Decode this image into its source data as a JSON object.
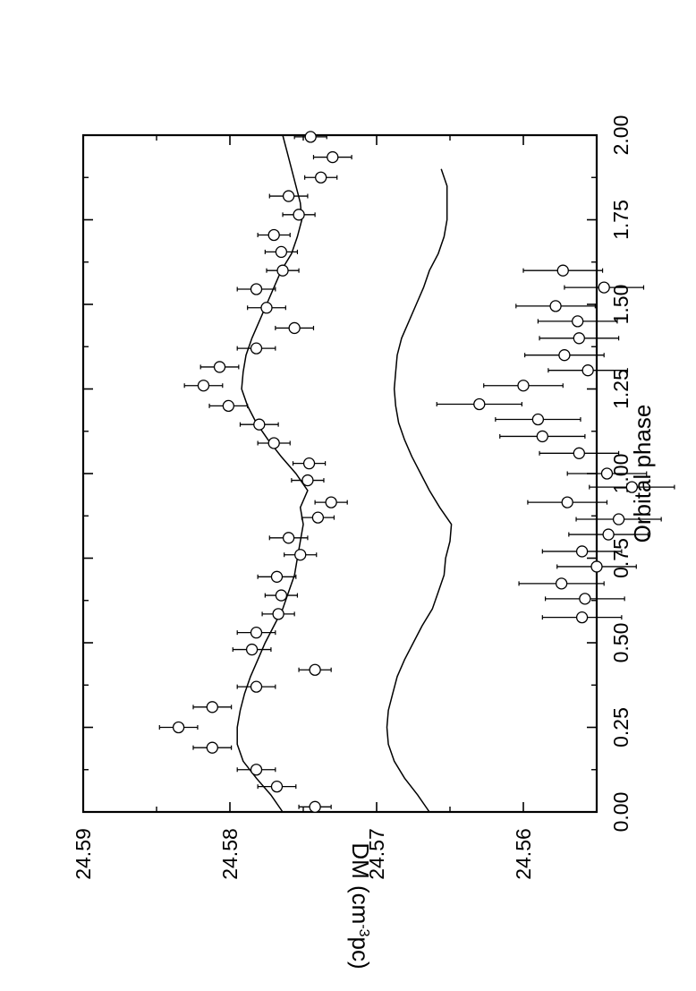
{
  "chart_data": {
    "type": "scatter",
    "orientation": "rotated 90 degrees counter-clockwise",
    "xlabel": "Orbital phase",
    "ylabel_main": "DM (cm",
    "ylabel_sup": "-3",
    "ylabel_tail": "pc)",
    "xlim": [
      0.0,
      2.0
    ],
    "ylim": [
      24.555,
      24.59
    ],
    "x_ticks": [
      "0.00",
      "0.25",
      "0.50",
      "0.75",
      "1.00",
      "1.25",
      "1.50",
      "1.75",
      "2.00"
    ],
    "x_tick_values": [
      0,
      0.25,
      0.5,
      0.75,
      1.0,
      1.25,
      1.5,
      1.75,
      2.0
    ],
    "y_ticks": [
      "24.59",
      "24.58",
      "24.57",
      "24.56"
    ],
    "y_tick_values": [
      24.59,
      24.58,
      24.57,
      24.56
    ],
    "grid": false,
    "series": [
      {
        "points": [
          {
            "x": 0.015,
            "y": 24.5742,
            "err": 0.0011
          },
          {
            "x": 0.075,
            "y": 24.5768,
            "err": 0.0013
          },
          {
            "x": 0.125,
            "y": 24.5782,
            "err": 0.0013
          },
          {
            "x": 0.19,
            "y": 24.5812,
            "err": 0.0013
          },
          {
            "x": 0.25,
            "y": 24.5835,
            "err": 0.0013
          },
          {
            "x": 0.31,
            "y": 24.5812,
            "err": 0.0013
          },
          {
            "x": 0.37,
            "y": 24.5782,
            "err": 0.0013
          },
          {
            "x": 0.42,
            "y": 24.5742,
            "err": 0.0011
          },
          {
            "x": 0.48,
            "y": 24.5785,
            "err": 0.0013
          },
          {
            "x": 0.53,
            "y": 24.5782,
            "err": 0.0013
          },
          {
            "x": 0.585,
            "y": 24.5767,
            "err": 0.0011
          },
          {
            "x": 0.64,
            "y": 24.5765,
            "err": 0.0011
          },
          {
            "x": 0.695,
            "y": 24.5768,
            "err": 0.0013
          },
          {
            "x": 0.76,
            "y": 24.5752,
            "err": 0.0011
          },
          {
            "x": 0.81,
            "y": 24.576,
            "err": 0.0013
          },
          {
            "x": 0.87,
            "y": 24.574,
            "err": 0.0011
          },
          {
            "x": 0.915,
            "y": 24.5731,
            "err": 0.0011
          },
          {
            "x": 0.98,
            "y": 24.5747,
            "err": 0.0011
          },
          {
            "x": 1.03,
            "y": 24.5746,
            "err": 0.0011
          },
          {
            "x": 1.09,
            "y": 24.577,
            "err": 0.0011
          },
          {
            "x": 1.145,
            "y": 24.578,
            "err": 0.0013
          },
          {
            "x": 1.2,
            "y": 24.5801,
            "err": 0.0013
          },
          {
            "x": 1.26,
            "y": 24.5818,
            "err": 0.0013
          },
          {
            "x": 1.315,
            "y": 24.5807,
            "err": 0.0013
          },
          {
            "x": 1.37,
            "y": 24.5782,
            "err": 0.0013
          },
          {
            "x": 1.43,
            "y": 24.5756,
            "err": 0.0013
          },
          {
            "x": 1.49,
            "y": 24.5775,
            "err": 0.0013
          },
          {
            "x": 1.545,
            "y": 24.5782,
            "err": 0.0013
          },
          {
            "x": 1.6,
            "y": 24.5764,
            "err": 0.0011
          },
          {
            "x": 1.655,
            "y": 24.5765,
            "err": 0.0011
          },
          {
            "x": 1.705,
            "y": 24.577,
            "err": 0.0011
          },
          {
            "x": 1.765,
            "y": 24.5753,
            "err": 0.0011
          },
          {
            "x": 1.82,
            "y": 24.576,
            "err": 0.0013
          },
          {
            "x": 1.875,
            "y": 24.5738,
            "err": 0.0011
          },
          {
            "x": 1.935,
            "y": 24.573,
            "err": 0.0013
          },
          {
            "x": 1.995,
            "y": 24.5745,
            "err": 0.0011
          }
        ],
        "model": {
          "x": [
            0.0,
            0.05,
            0.1,
            0.15,
            0.2,
            0.25,
            0.3,
            0.35,
            0.4,
            0.45,
            0.5,
            0.55,
            0.6,
            0.65,
            0.7,
            0.75,
            0.8,
            0.85,
            0.9,
            0.95,
            1.0,
            1.05,
            1.1,
            1.15,
            1.2,
            1.25,
            1.3,
            1.35,
            1.4,
            1.45,
            1.5,
            1.55,
            1.6,
            1.65,
            1.7,
            1.75,
            1.8,
            1.85,
            1.9,
            1.95,
            2.0
          ],
          "y": [
            24.5764,
            24.5772,
            24.5782,
            24.5791,
            24.5795,
            24.5795,
            24.5793,
            24.579,
            24.5786,
            24.5781,
            24.5776,
            24.577,
            24.5764,
            24.576,
            24.5756,
            24.5754,
            24.5752,
            24.575,
            24.5752,
            24.5747,
            24.5755,
            24.5765,
            24.5774,
            24.5782,
            24.5788,
            24.5792,
            24.5791,
            24.5789,
            24.5785,
            24.578,
            24.5775,
            24.577,
            24.5765,
            24.5758,
            24.5754,
            24.5751,
            24.5752,
            24.5755,
            24.5758,
            24.5761,
            24.5764
          ]
        }
      },
      {
        "points": [
          {
            "x": 0.575,
            "y": 24.556,
            "err": 0.0027
          },
          {
            "x": 0.63,
            "y": 24.5558,
            "err": 0.0027
          },
          {
            "x": 0.675,
            "y": 24.5574,
            "err": 0.0029
          },
          {
            "x": 0.725,
            "y": 24.555,
            "err": 0.0027
          },
          {
            "x": 0.77,
            "y": 24.556,
            "err": 0.0027
          },
          {
            "x": 0.82,
            "y": 24.5542,
            "err": 0.0027
          },
          {
            "x": 0.865,
            "y": 24.5535,
            "err": 0.0029
          },
          {
            "x": 0.915,
            "y": 24.557,
            "err": 0.0027
          },
          {
            "x": 0.96,
            "y": 24.5526,
            "err": 0.0029
          },
          {
            "x": 1.0,
            "y": 24.5543,
            "err": 0.0027
          },
          {
            "x": 1.06,
            "y": 24.5562,
            "err": 0.0027
          },
          {
            "x": 1.11,
            "y": 24.5587,
            "err": 0.0029
          },
          {
            "x": 1.16,
            "y": 24.559,
            "err": 0.0029
          },
          {
            "x": 1.205,
            "y": 24.563,
            "err": 0.0029
          },
          {
            "x": 1.26,
            "y": 24.56,
            "err": 0.0027
          },
          {
            "x": 1.305,
            "y": 24.5556,
            "err": 0.0027
          },
          {
            "x": 1.35,
            "y": 24.5572,
            "err": 0.0027
          },
          {
            "x": 1.4,
            "y": 24.5562,
            "err": 0.0027
          },
          {
            "x": 1.45,
            "y": 24.5563,
            "err": 0.0027
          },
          {
            "x": 1.495,
            "y": 24.5578,
            "err": 0.0027
          },
          {
            "x": 1.55,
            "y": 24.5545,
            "err": 0.0027
          },
          {
            "x": 1.6,
            "y": 24.5573,
            "err": 0.0027
          }
        ],
        "model": {
          "x": [
            0.0,
            0.05,
            0.1,
            0.15,
            0.2,
            0.25,
            0.3,
            0.35,
            0.4,
            0.45,
            0.5,
            0.55,
            0.6,
            0.65,
            0.7,
            0.75,
            0.8,
            0.85,
            0.9,
            0.95,
            1.0,
            1.05,
            1.1,
            1.15,
            1.2,
            1.25,
            1.3,
            1.35,
            1.4,
            1.45,
            1.5,
            1.55,
            1.6,
            1.65,
            1.7,
            1.75,
            1.8,
            1.85,
            1.9
          ],
          "y": [
            24.5664,
            24.5672,
            24.5681,
            24.5688,
            24.5692,
            24.5693,
            24.5692,
            24.5689,
            24.5686,
            24.5681,
            24.5675,
            24.5669,
            24.5662,
            24.5658,
            24.5654,
            24.5653,
            24.565,
            24.5649,
            24.5657,
            24.5664,
            24.567,
            24.5676,
            24.5681,
            24.5685,
            24.5687,
            24.5688,
            24.5687,
            24.5686,
            24.5683,
            24.5678,
            24.5673,
            24.5668,
            24.5664,
            24.5658,
            24.5654,
            24.5652,
            24.5652,
            24.5652,
            24.5656
          ]
        }
      }
    ]
  }
}
